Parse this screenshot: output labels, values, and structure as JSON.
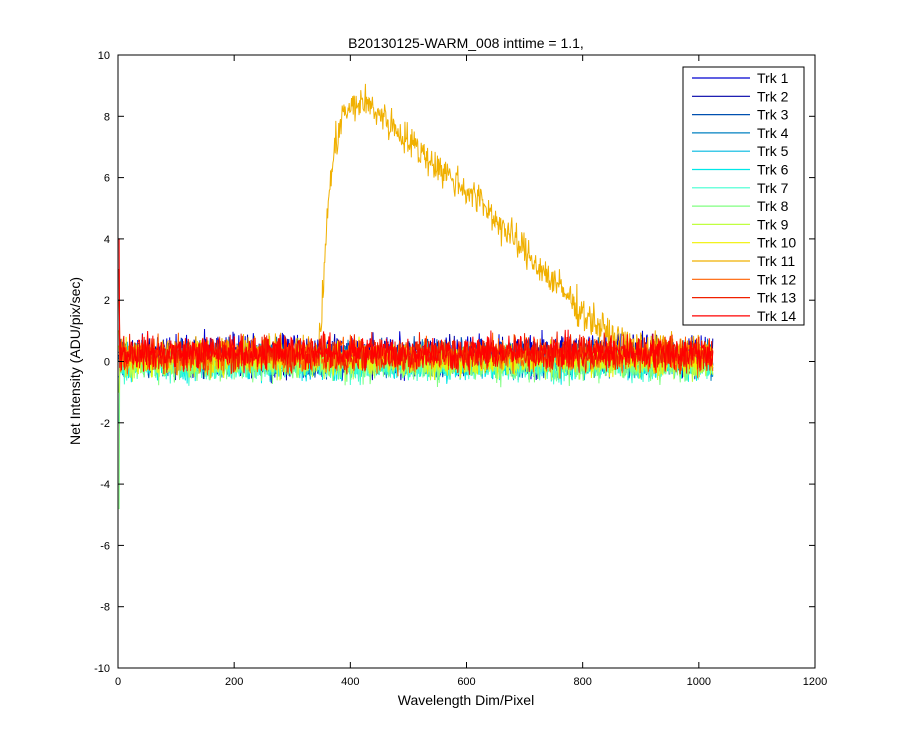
{
  "chart_data": {
    "type": "line",
    "title": "B20130125-WARM_008 inttime = 1.1,",
    "xlabel": "Wavelength Dim/Pixel",
    "ylabel": "Net Intensity (ADU/pix/sec)",
    "xlim": [
      0,
      1200
    ],
    "ylim": [
      -10,
      10
    ],
    "x_range": [
      1,
      1024
    ],
    "xticks": [
      "0",
      "200",
      "400",
      "600",
      "800",
      "1000",
      "1200"
    ],
    "yticks": [
      "-10",
      "-8",
      "-6",
      "-4",
      "-2",
      "0",
      "2",
      "4",
      "6",
      "8",
      "10"
    ],
    "grid": false,
    "legend_position": "top-right",
    "series": [
      {
        "name": "Trk 1",
        "color": "#0000d0",
        "baseline": 0.2,
        "noise": 0.32,
        "spike": 0.3
      },
      {
        "name": "Trk 2",
        "color": "#0000a8",
        "baseline": 0.15,
        "noise": 0.3,
        "spike": 0.2
      },
      {
        "name": "Trk 3",
        "color": "#0050b0",
        "baseline": 0.1,
        "noise": 0.28,
        "spike": 0.1
      },
      {
        "name": "Trk 4",
        "color": "#0080c0",
        "baseline": 0.05,
        "noise": 0.26,
        "spike": 0.0
      },
      {
        "name": "Trk 5",
        "color": "#00b8e0",
        "baseline": 0.0,
        "noise": 0.24,
        "spike": -0.5
      },
      {
        "name": "Trk 6",
        "color": "#00e8e8",
        "baseline": -0.1,
        "noise": 0.24,
        "spike": -1.0
      },
      {
        "name": "Trk 7",
        "color": "#40ffd0",
        "baseline": -0.15,
        "noise": 0.24,
        "spike": -2.0
      },
      {
        "name": "Trk 8",
        "color": "#80ff80",
        "baseline": -0.1,
        "noise": 0.26,
        "spike": -4.8
      },
      {
        "name": "Trk 9",
        "color": "#c0ff40",
        "baseline": 0.0,
        "noise": 0.26,
        "spike": -1.0
      },
      {
        "name": "Trk 10",
        "color": "#f0f000",
        "baseline": 0.1,
        "noise": 0.26,
        "spike": 0.5
      },
      {
        "name": "Trk 11",
        "color": "#f0b000",
        "baseline": 0.2,
        "noise": 0.28,
        "spike": 1.0,
        "profile": [
          [
            1,
            0.2
          ],
          [
            345,
            0.3
          ],
          [
            350,
            1.2
          ],
          [
            360,
            4.8
          ],
          [
            372,
            6.8
          ],
          [
            385,
            8.0
          ],
          [
            420,
            8.5
          ],
          [
            450,
            8.1
          ],
          [
            500,
            7.2
          ],
          [
            560,
            6.2
          ],
          [
            620,
            5.3
          ],
          [
            680,
            4.0
          ],
          [
            740,
            2.8
          ],
          [
            800,
            1.6
          ],
          [
            850,
            0.8
          ],
          [
            900,
            0.4
          ],
          [
            1024,
            0.3
          ]
        ]
      },
      {
        "name": "Trk 12",
        "color": "#ff6000",
        "baseline": 0.2,
        "noise": 0.28,
        "spike": 2.0
      },
      {
        "name": "Trk 13",
        "color": "#f02000",
        "baseline": 0.25,
        "noise": 0.28,
        "spike": 3.0
      },
      {
        "name": "Trk 14",
        "color": "#ff0000",
        "baseline": 0.3,
        "noise": 0.28,
        "spike": 4.0
      }
    ]
  }
}
